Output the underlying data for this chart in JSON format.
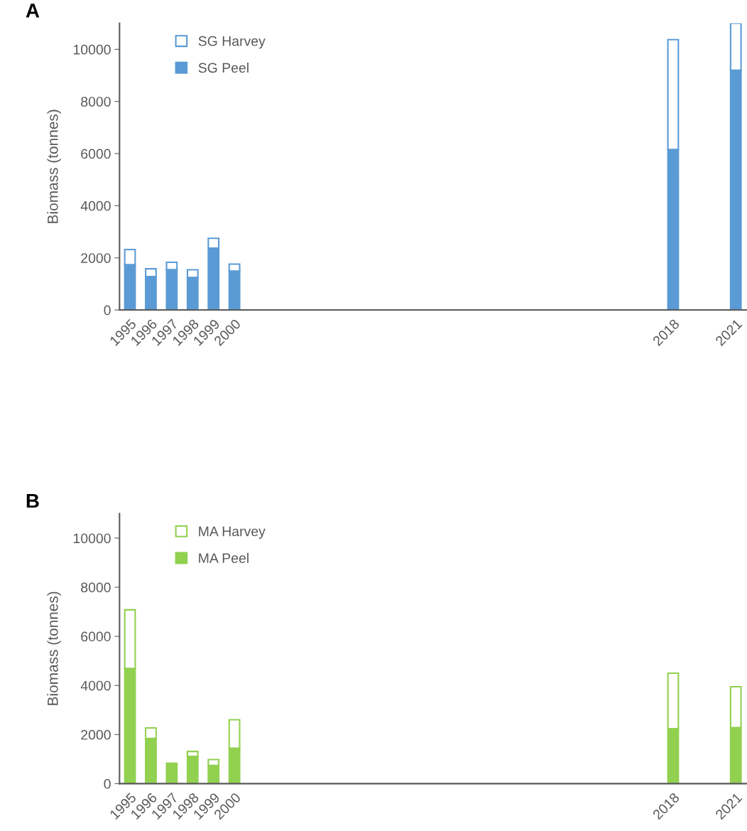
{
  "chart_data": [
    {
      "type": "bar",
      "title": "A",
      "ylabel": "Biomass (tonnes)",
      "stacked": true,
      "legend": "top left",
      "grid": false,
      "categories": [
        "1995",
        "1996",
        "1997",
        "1998",
        "1999",
        "2000",
        null,
        null,
        null,
        null,
        null,
        null,
        null,
        null,
        null,
        null,
        null,
        null,
        null,
        null,
        null,
        null,
        null,
        null,
        null,
        null,
        "2018",
        null,
        null,
        "2021"
      ],
      "ylim": [
        0,
        11000
      ],
      "yticks": [
        0,
        2000,
        4000,
        6000,
        8000,
        10000
      ],
      "series": [
        {
          "name": "SG Peel",
          "color": "#5b9bd5",
          "values": [
            1740,
            1280,
            1550,
            1250,
            2370,
            1490,
            null,
            null,
            null,
            null,
            null,
            null,
            null,
            null,
            null,
            null,
            null,
            null,
            null,
            null,
            null,
            null,
            null,
            null,
            null,
            null,
            6160,
            null,
            null,
            9200
          ]
        },
        {
          "name": "SG Harvey",
          "color": "#5b9bd5",
          "values": [
            580,
            300,
            280,
            290,
            380,
            270,
            null,
            null,
            null,
            null,
            null,
            null,
            null,
            null,
            null,
            null,
            null,
            null,
            null,
            null,
            null,
            null,
            null,
            null,
            null,
            null,
            4210,
            null,
            null,
            1800
          ]
        }
      ]
    },
    {
      "type": "bar",
      "title": "B",
      "ylabel": "Biomass (tonnes)",
      "stacked": true,
      "legend": "top left",
      "grid": false,
      "categories": [
        "1995",
        "1996",
        "1997",
        "1998",
        "1999",
        "2000",
        null,
        null,
        null,
        null,
        null,
        null,
        null,
        null,
        null,
        null,
        null,
        null,
        null,
        null,
        null,
        null,
        null,
        null,
        null,
        null,
        "2018",
        null,
        null,
        "2021"
      ],
      "ylim": [
        0,
        11000
      ],
      "yticks": [
        0,
        2000,
        4000,
        6000,
        8000,
        10000
      ],
      "series": [
        {
          "name": "MA Peel",
          "color": "#92d050",
          "values": [
            4690,
            1840,
            830,
            1110,
            740,
            1440,
            null,
            null,
            null,
            null,
            null,
            null,
            null,
            null,
            null,
            null,
            null,
            null,
            null,
            null,
            null,
            null,
            null,
            null,
            null,
            null,
            2240,
            null,
            null,
            2280
          ]
        },
        {
          "name": "MA Harvey",
          "color": "#92d050",
          "values": [
            2390,
            430,
            0,
            200,
            240,
            1160,
            null,
            null,
            null,
            null,
            null,
            null,
            null,
            null,
            null,
            null,
            null,
            null,
            null,
            null,
            null,
            null,
            null,
            null,
            null,
            null,
            2260,
            null,
            null,
            1670
          ]
        }
      ]
    }
  ]
}
